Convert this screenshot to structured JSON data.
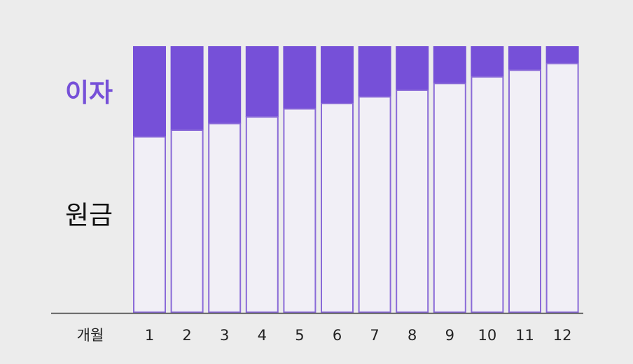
{
  "chart_data": {
    "type": "bar",
    "stacked": true,
    "normalized": true,
    "xlabel": "개월",
    "categories": [
      "1",
      "2",
      "3",
      "4",
      "5",
      "6",
      "7",
      "8",
      "9",
      "10",
      "11",
      "12"
    ],
    "series": [
      {
        "name": "원금",
        "color": "#f1eff6",
        "values": [
          0.66,
          0.685,
          0.71,
          0.735,
          0.765,
          0.785,
          0.81,
          0.835,
          0.86,
          0.885,
          0.91,
          0.935
        ]
      },
      {
        "name": "이자",
        "color": "#7650d8",
        "values": [
          0.34,
          0.315,
          0.29,
          0.265,
          0.235,
          0.215,
          0.19,
          0.165,
          0.14,
          0.115,
          0.09,
          0.065
        ]
      }
    ],
    "ylim": [
      0,
      1
    ],
    "grid": false,
    "legend": "left",
    "colors": {
      "interest_label": "#7650d8",
      "principal_label": "#111111",
      "bar_outline": "#8a6ad8",
      "axis": "#444444"
    }
  }
}
